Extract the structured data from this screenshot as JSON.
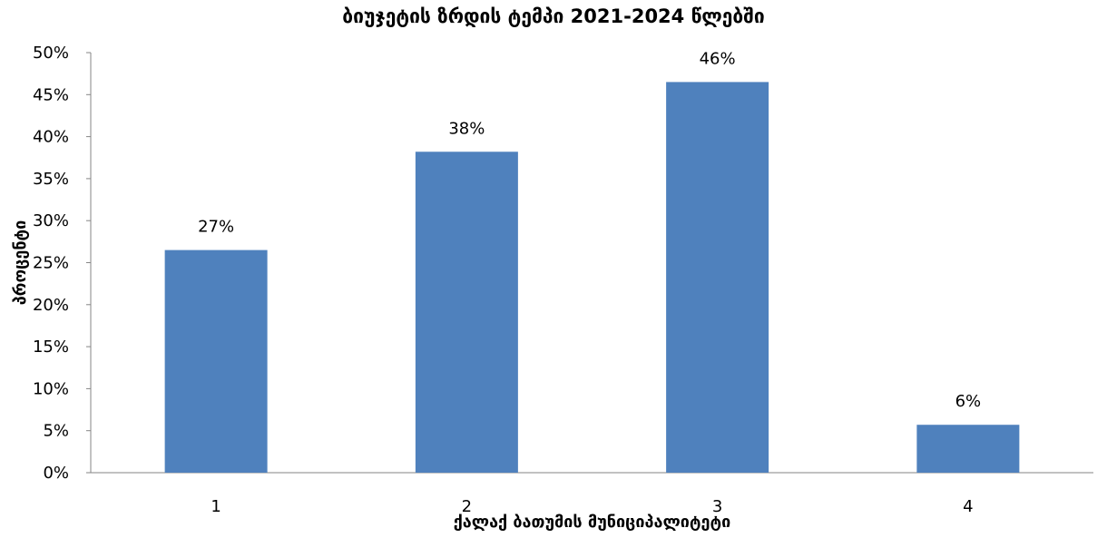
{
  "chart_data": {
    "type": "bar",
    "title": "ბიუჯეტის ზრდის ტემპი 2021-2024 წლებში",
    "xlabel": "ქალაქ ბათუმის მუნიციპალიტეტი",
    "ylabel": "პროცენტი",
    "categories": [
      "1",
      "2",
      "3",
      "4"
    ],
    "values": [
      0.265,
      0.382,
      0.465,
      0.057
    ],
    "data_labels": [
      "27%",
      "38%",
      "46%",
      "6%"
    ],
    "ylim": [
      0,
      0.5
    ],
    "yticks": [
      0,
      0.05,
      0.1,
      0.15,
      0.2,
      0.25,
      0.3,
      0.35,
      0.4,
      0.45,
      0.5
    ],
    "ytick_labels": [
      "0%",
      "5%",
      "10%",
      "15%",
      "20%",
      "25%",
      "30%",
      "35%",
      "40%",
      "45%",
      "50%"
    ],
    "bar_color": "#4F81BD",
    "grid": false,
    "legend": "none"
  }
}
